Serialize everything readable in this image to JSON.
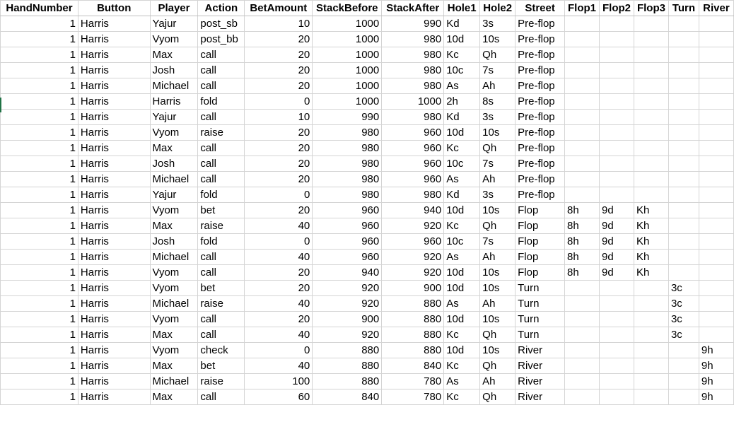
{
  "columns": [
    {
      "key": "hand",
      "label": "HandNumber",
      "align": "num"
    },
    {
      "key": "button",
      "label": "Button",
      "align": "txt"
    },
    {
      "key": "player",
      "label": "Player",
      "align": "txt"
    },
    {
      "key": "action",
      "label": "Action",
      "align": "txt"
    },
    {
      "key": "bet",
      "label": "BetAmount",
      "align": "num"
    },
    {
      "key": "before",
      "label": "StackBefore",
      "align": "num"
    },
    {
      "key": "after",
      "label": "StackAfter",
      "align": "num"
    },
    {
      "key": "hole1",
      "label": "Hole1",
      "align": "txt"
    },
    {
      "key": "hole2",
      "label": "Hole2",
      "align": "txt"
    },
    {
      "key": "street",
      "label": "Street",
      "align": "txt"
    },
    {
      "key": "flop1",
      "label": "Flop1",
      "align": "txt"
    },
    {
      "key": "flop2",
      "label": "Flop2",
      "align": "txt"
    },
    {
      "key": "flop3",
      "label": "Flop3",
      "align": "txt"
    },
    {
      "key": "turn",
      "label": "Turn",
      "align": "txt"
    },
    {
      "key": "river",
      "label": "River",
      "align": "txt"
    }
  ],
  "rows": [
    [
      "1",
      "Harris",
      "Yajur",
      "post_sb",
      "10",
      "1000",
      "990",
      "Kd",
      "3s",
      "Pre-flop",
      "",
      "",
      "",
      "",
      ""
    ],
    [
      "1",
      "Harris",
      "Vyom",
      "post_bb",
      "20",
      "1000",
      "980",
      "10d",
      "10s",
      "Pre-flop",
      "",
      "",
      "",
      "",
      ""
    ],
    [
      "1",
      "Harris",
      "Max",
      "call",
      "20",
      "1000",
      "980",
      "Kc",
      "Qh",
      "Pre-flop",
      "",
      "",
      "",
      "",
      ""
    ],
    [
      "1",
      "Harris",
      "Josh",
      "call",
      "20",
      "1000",
      "980",
      "10c",
      "7s",
      "Pre-flop",
      "",
      "",
      "",
      "",
      ""
    ],
    [
      "1",
      "Harris",
      "Michael",
      "call",
      "20",
      "1000",
      "980",
      "As",
      "Ah",
      "Pre-flop",
      "",
      "",
      "",
      "",
      ""
    ],
    [
      "1",
      "Harris",
      "Harris",
      "fold",
      "0",
      "1000",
      "1000",
      "2h",
      "8s",
      "Pre-flop",
      "",
      "",
      "",
      "",
      ""
    ],
    [
      "1",
      "Harris",
      "Yajur",
      "call",
      "10",
      "990",
      "980",
      "Kd",
      "3s",
      "Pre-flop",
      "",
      "",
      "",
      "",
      ""
    ],
    [
      "1",
      "Harris",
      "Vyom",
      "raise",
      "20",
      "980",
      "960",
      "10d",
      "10s",
      "Pre-flop",
      "",
      "",
      "",
      "",
      ""
    ],
    [
      "1",
      "Harris",
      "Max",
      "call",
      "20",
      "980",
      "960",
      "Kc",
      "Qh",
      "Pre-flop",
      "",
      "",
      "",
      "",
      ""
    ],
    [
      "1",
      "Harris",
      "Josh",
      "call",
      "20",
      "980",
      "960",
      "10c",
      "7s",
      "Pre-flop",
      "",
      "",
      "",
      "",
      ""
    ],
    [
      "1",
      "Harris",
      "Michael",
      "call",
      "20",
      "980",
      "960",
      "As",
      "Ah",
      "Pre-flop",
      "",
      "",
      "",
      "",
      ""
    ],
    [
      "1",
      "Harris",
      "Yajur",
      "fold",
      "0",
      "980",
      "980",
      "Kd",
      "3s",
      "Pre-flop",
      "",
      "",
      "",
      "",
      ""
    ],
    [
      "1",
      "Harris",
      "Vyom",
      "bet",
      "20",
      "960",
      "940",
      "10d",
      "10s",
      "Flop",
      "8h",
      "9d",
      "Kh",
      "",
      ""
    ],
    [
      "1",
      "Harris",
      "Max",
      "raise",
      "40",
      "960",
      "920",
      "Kc",
      "Qh",
      "Flop",
      "8h",
      "9d",
      "Kh",
      "",
      ""
    ],
    [
      "1",
      "Harris",
      "Josh",
      "fold",
      "0",
      "960",
      "960",
      "10c",
      "7s",
      "Flop",
      "8h",
      "9d",
      "Kh",
      "",
      ""
    ],
    [
      "1",
      "Harris",
      "Michael",
      "call",
      "40",
      "960",
      "920",
      "As",
      "Ah",
      "Flop",
      "8h",
      "9d",
      "Kh",
      "",
      ""
    ],
    [
      "1",
      "Harris",
      "Vyom",
      "call",
      "20",
      "940",
      "920",
      "10d",
      "10s",
      "Flop",
      "8h",
      "9d",
      "Kh",
      "",
      ""
    ],
    [
      "1",
      "Harris",
      "Vyom",
      "bet",
      "20",
      "920",
      "900",
      "10d",
      "10s",
      "Turn",
      "",
      "",
      "",
      "3c",
      ""
    ],
    [
      "1",
      "Harris",
      "Michael",
      "raise",
      "40",
      "920",
      "880",
      "As",
      "Ah",
      "Turn",
      "",
      "",
      "",
      "3c",
      ""
    ],
    [
      "1",
      "Harris",
      "Vyom",
      "call",
      "20",
      "900",
      "880",
      "10d",
      "10s",
      "Turn",
      "",
      "",
      "",
      "3c",
      ""
    ],
    [
      "1",
      "Harris",
      "Max",
      "call",
      "40",
      "920",
      "880",
      "Kc",
      "Qh",
      "Turn",
      "",
      "",
      "",
      "3c",
      ""
    ],
    [
      "1",
      "Harris",
      "Vyom",
      "check",
      "0",
      "880",
      "880",
      "10d",
      "10s",
      "River",
      "",
      "",
      "",
      "",
      "9h"
    ],
    [
      "1",
      "Harris",
      "Max",
      "bet",
      "40",
      "880",
      "840",
      "Kc",
      "Qh",
      "River",
      "",
      "",
      "",
      "",
      "9h"
    ],
    [
      "1",
      "Harris",
      "Michael",
      "raise",
      "100",
      "880",
      "780",
      "As",
      "Ah",
      "River",
      "",
      "",
      "",
      "",
      "9h"
    ],
    [
      "1",
      "Harris",
      "Max",
      "call",
      "60",
      "840",
      "780",
      "Kc",
      "Qh",
      "River",
      "",
      "",
      "",
      "",
      "9h"
    ]
  ]
}
